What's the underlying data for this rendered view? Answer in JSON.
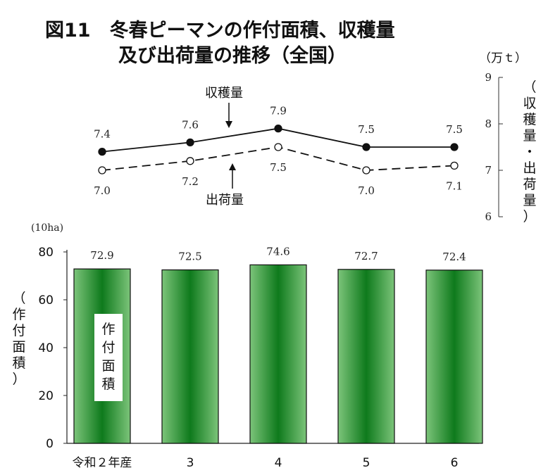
{
  "title_line1": "図11　冬春ピーマンの作付面積、収穫量",
  "title_line2": "及び出荷量の推移（全国）",
  "line_unit": "（万ｔ）",
  "line_axis_label": "（収穫量・出荷量）",
  "bar_unit": "(10ha)",
  "bar_axis_label": "（作付面積）",
  "bar_inner_label": "作付面積",
  "harvest_label": "収穫量",
  "shipment_label": "出荷量",
  "chart_data": [
    {
      "type": "line",
      "categories": [
        "令和２年産",
        "3",
        "4",
        "5",
        "6"
      ],
      "series": [
        {
          "name": "収穫量",
          "values": [
            7.4,
            7.6,
            7.9,
            7.5,
            7.5
          ],
          "style": "solid",
          "marker": "filled",
          "color": "#111111"
        },
        {
          "name": "出荷量",
          "values": [
            7.0,
            7.2,
            7.5,
            7.0,
            7.1
          ],
          "style": "dashed",
          "marker": "open",
          "color": "#111111"
        }
      ],
      "ylim": [
        6,
        9
      ],
      "yticks": [
        "6",
        "7",
        "8",
        "9"
      ],
      "ylabel": "（収穫量・出荷量）",
      "unit": "（万ｔ）"
    },
    {
      "type": "bar",
      "categories": [
        "令和２年産",
        "3",
        "4",
        "5",
        "6"
      ],
      "values": [
        72.9,
        72.5,
        74.6,
        72.7,
        72.4
      ],
      "ylim": [
        0,
        80
      ],
      "yticks": [
        "0",
        "20",
        "40",
        "60",
        "80"
      ],
      "ylabel": "（作付面積）",
      "unit": "(10ha)",
      "bar_color": "#2e9a38"
    }
  ]
}
